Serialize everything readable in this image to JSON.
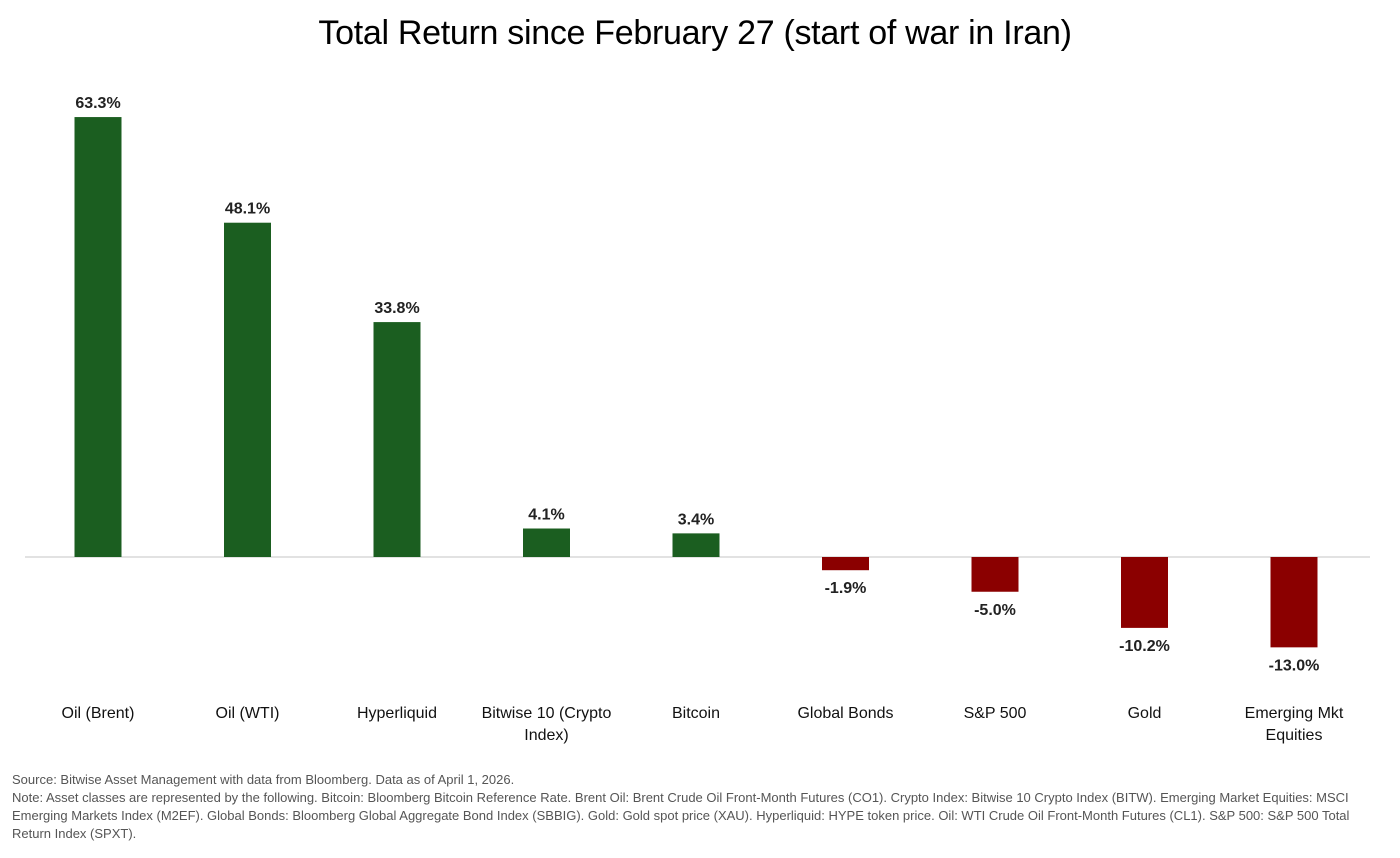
{
  "chart_data": {
    "type": "bar",
    "title": "Total Return since February 27 (start of war in Iran)",
    "categories": [
      "Oil (Brent)",
      "Oil (WTI)",
      "Hyperliquid",
      "Bitwise 10 (Crypto Index)",
      "Bitcoin",
      "Global Bonds",
      "S&P 500",
      "Gold",
      "Emerging Mkt Equities"
    ],
    "category_lines": [
      [
        "Oil (Brent)"
      ],
      [
        "Oil (WTI)"
      ],
      [
        "Hyperliquid"
      ],
      [
        "Bitwise 10 (Crypto",
        "Index)"
      ],
      [
        "Bitcoin"
      ],
      [
        "Global Bonds"
      ],
      [
        "S&P 500"
      ],
      [
        "Gold"
      ],
      [
        "Emerging Mkt",
        "Equities"
      ]
    ],
    "values": [
      63.3,
      48.1,
      33.8,
      4.1,
      3.4,
      -1.9,
      -5.0,
      -10.2,
      -13.0
    ],
    "value_labels": [
      "63.3%",
      "48.1%",
      "33.8%",
      "4.1%",
      "3.4%",
      "-1.9%",
      "-5.0%",
      "-10.2%",
      "-13.0%"
    ],
    "colors": {
      "positive": "#1b5e20",
      "negative": "#8b0000",
      "baseline": "#d0d0d0"
    },
    "xlabel": "",
    "ylabel": "",
    "grid": false,
    "legend": "none"
  },
  "notes": {
    "source": "Source: Bitwise Asset Management with data from Bloomberg. Data as of April 1, 2026.",
    "note": "Note: Asset classes are represented by the following. Bitcoin: Bloomberg Bitcoin Reference Rate. Brent Oil: Brent Crude Oil Front-Month Futures (CO1). Crypto Index: Bitwise 10 Crypto Index (BITW). Emerging Market Equities: MSCI Emerging Markets Index (M2EF). Global Bonds: Bloomberg Global Aggregate Bond Index (SBBIG). Gold: Gold spot price (XAU). Hyperliquid: HYPE token price. Oil: WTI Crude Oil Front-Month Futures (CL1). S&P 500: S&P 500 Total Return Index (SPXT)."
  }
}
